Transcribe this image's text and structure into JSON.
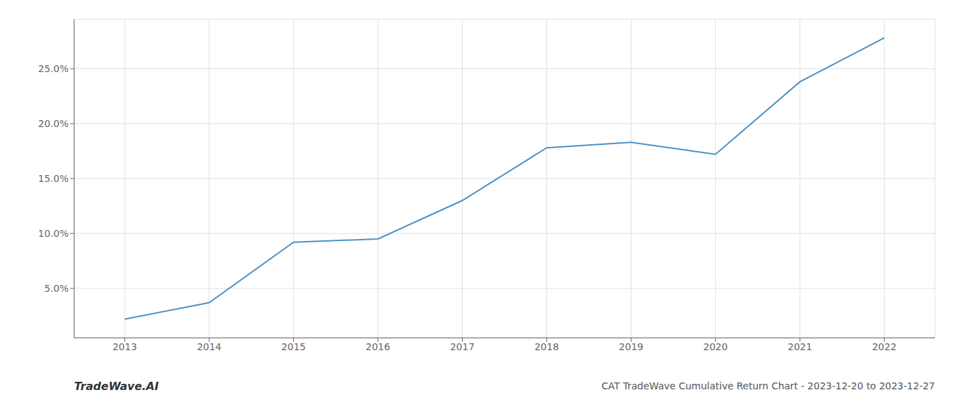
{
  "chart_data": {
    "type": "line",
    "title": "CAT TradeWave Cumulative Return Chart - 2023-12-20 to 2023-12-27",
    "annotations": [
      "TradeWave.AI"
    ],
    "x": [
      2013,
      2014,
      2015,
      2016,
      2017,
      2018,
      2019,
      2020,
      2021,
      2022
    ],
    "values": [
      2.2,
      3.7,
      9.2,
      9.5,
      13.0,
      17.8,
      18.3,
      17.2,
      23.8,
      27.8
    ],
    "color": "#4a90c4",
    "xlim": [
      2012.4,
      2022.6
    ],
    "ylim": [
      0.5,
      29.5
    ],
    "xticks": [
      2013,
      2014,
      2015,
      2016,
      2017,
      2018,
      2019,
      2020,
      2021,
      2022
    ],
    "yticks": [
      {
        "value": 5.0,
        "label": "5.0%"
      },
      {
        "value": 10.0,
        "label": "10.0%"
      },
      {
        "value": 15.0,
        "label": "15.0%"
      },
      {
        "value": 20.0,
        "label": "20.0%"
      },
      {
        "value": 25.0,
        "label": "25.0%"
      }
    ],
    "grid": true
  }
}
